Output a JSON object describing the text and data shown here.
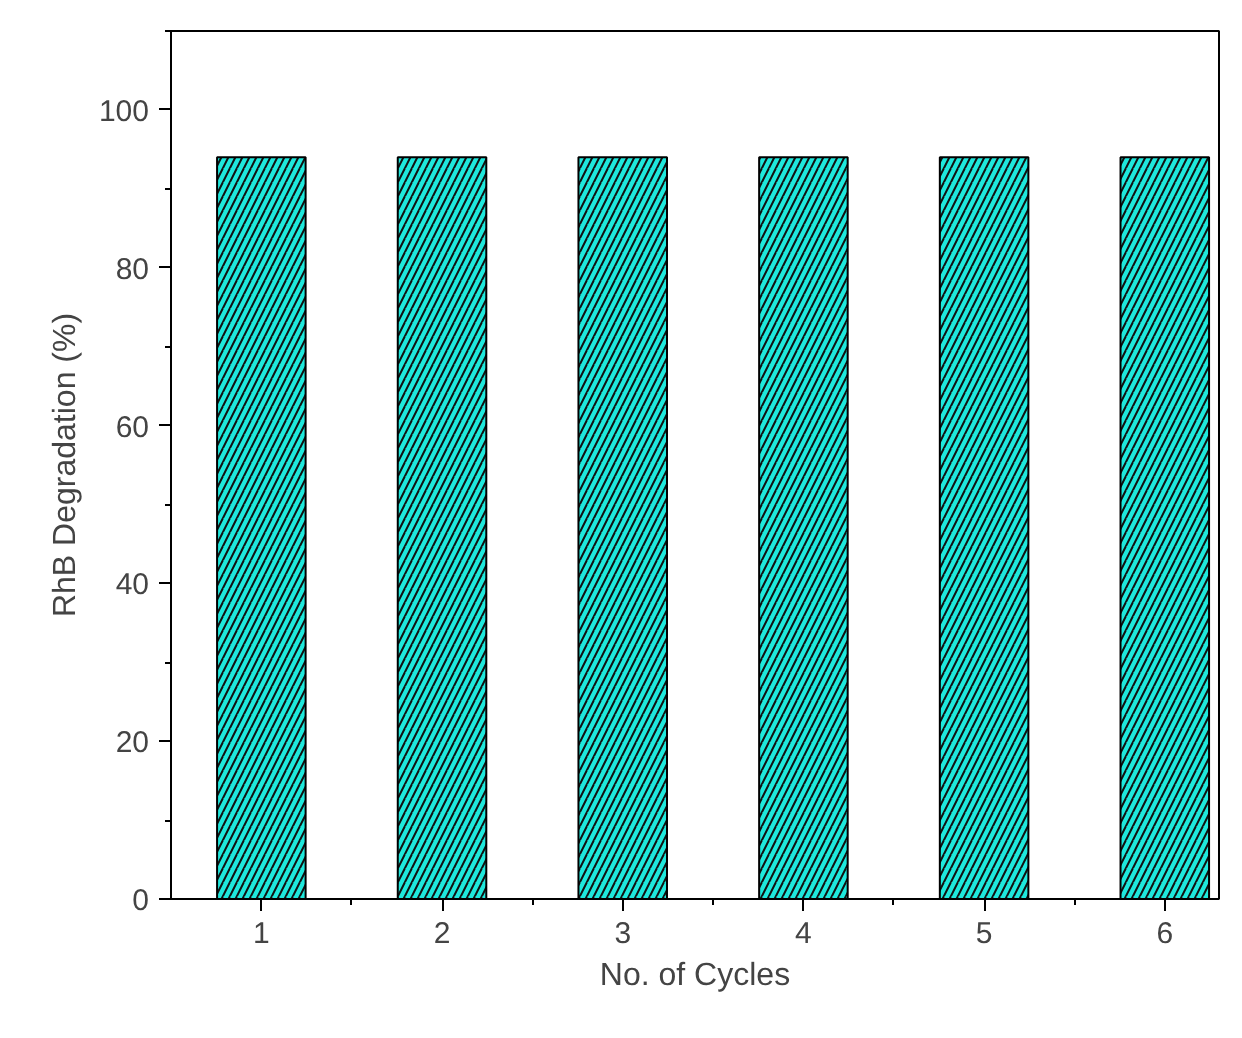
{
  "chart_data": {
    "type": "bar",
    "xlabel": "No. of Cycles",
    "ylabel": "RhB Degradation (%)",
    "categories": [
      "1",
      "2",
      "3",
      "4",
      "5",
      "6"
    ],
    "values": [
      94,
      94,
      94,
      94,
      94,
      94
    ],
    "color": "#1ee8dc",
    "ylim": [
      0,
      110
    ],
    "yticks": [
      0,
      20,
      40,
      60,
      80,
      100
    ],
    "grid": false
  }
}
